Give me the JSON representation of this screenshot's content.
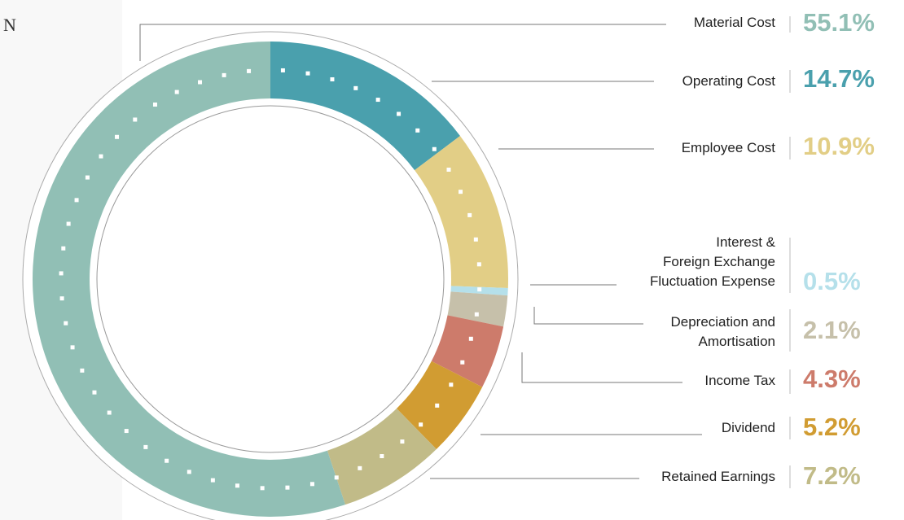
{
  "chart_data": {
    "type": "pie",
    "side_text": "N",
    "categories": [
      "Material Cost",
      "Operating Cost",
      "Employee Cost",
      "Interest &\nForeign Exchange\nFluctuation Expense",
      "Depreciation and\nAmortisation",
      "Income Tax",
      "Dividend",
      "Retained Earnings"
    ],
    "values": [
      55.1,
      14.7,
      10.9,
      0.5,
      2.1,
      4.3,
      5.2,
      7.2
    ],
    "value_labels": [
      "55.1%",
      "14.7%",
      "10.9%",
      "0.5%",
      "2.1%",
      "4.3%",
      "5.2%",
      "7.2%"
    ],
    "colors": [
      "#91bfb5",
      "#4aa0ad",
      "#e2ce86",
      "#b5e0ea",
      "#c6c0aa",
      "#cd7b6b",
      "#d19c32",
      "#c1bb88"
    ]
  }
}
